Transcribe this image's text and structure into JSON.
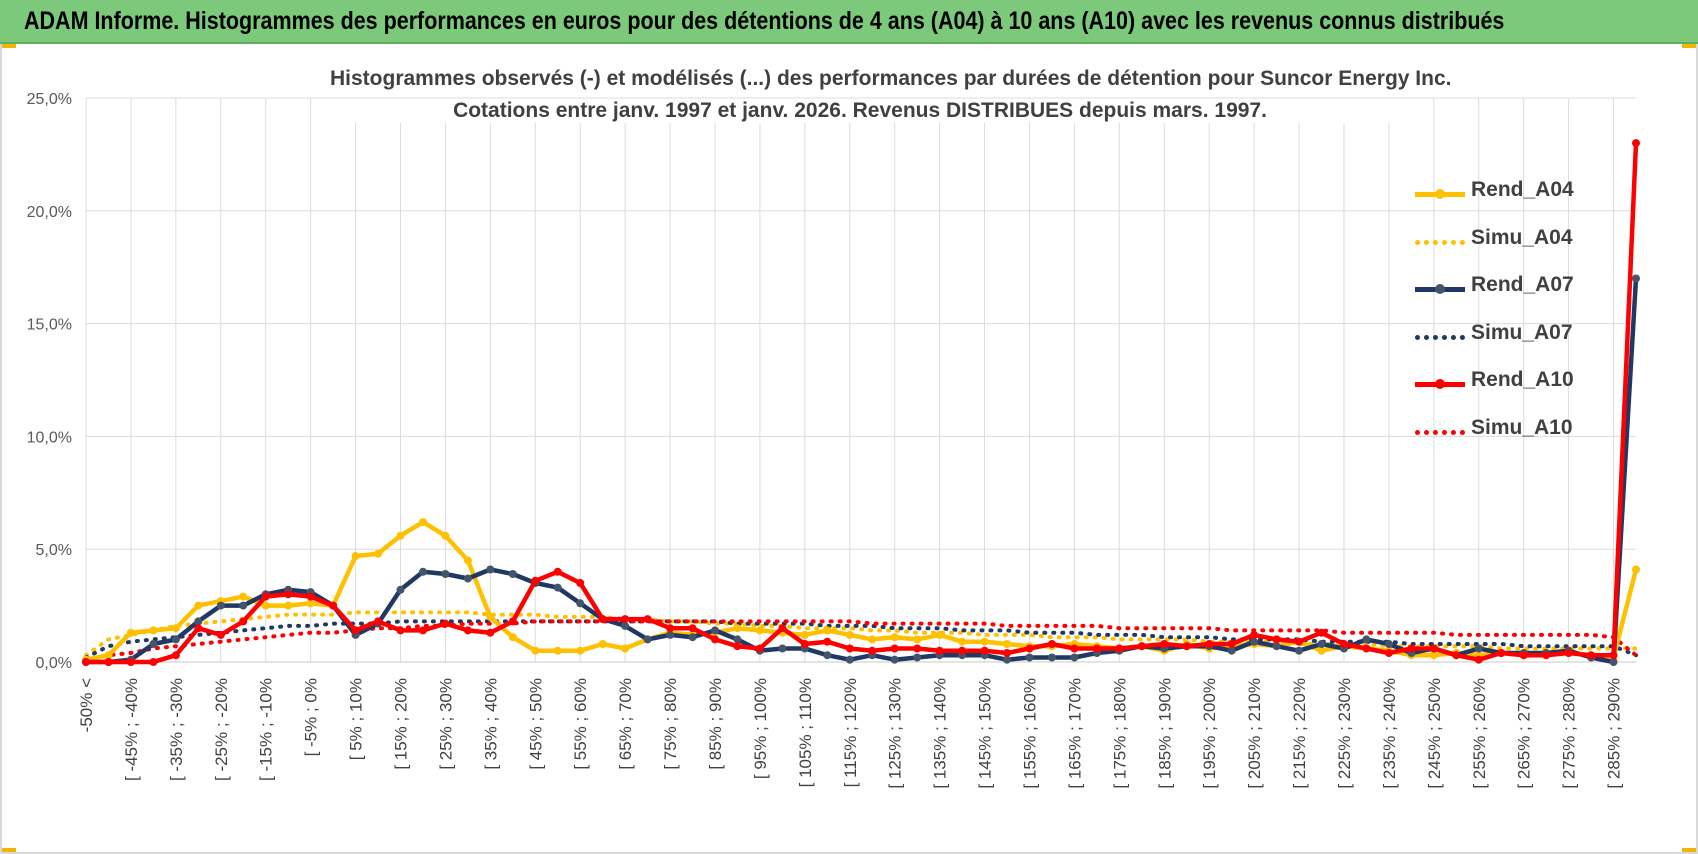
{
  "banner": {
    "title": "ADAM Informe. Histogrammes des performances en euros pour des détentions de 4 ans (A04) à 10 ans (A10) avec les revenus connus distribués"
  },
  "chart_data": {
    "type": "line",
    "title": "Histogrammes observés (-) et modélisés (...) des performances par durées de détention pour Suncor Energy Inc.",
    "subtitle": "Cotations entre janv. 1997 et janv. 2026. Revenus DISTRIBUES depuis mars. 1997.",
    "xlabel": "",
    "ylabel": "",
    "ylim": [
      0,
      25
    ],
    "yticks": [
      "0,0%",
      "5,0%",
      "10,0%",
      "15,0%",
      "20,0%",
      "25,0%"
    ],
    "grid": true,
    "legend_position": "top-right",
    "x_tick_labels": [
      "-50% <",
      "[ -45% ; -40%",
      "[ -35% ; -30%",
      "[ -25% ; -20%",
      "[ -15% ; -10%",
      "[ -5% ; 0%",
      "[ 5% ; 10%",
      "[ 15% ; 20%",
      "[ 25% ; 30%",
      "[ 35% ; 40%",
      "[ 45% ; 50%",
      "[ 55% ; 60%",
      "[ 65% ; 70%",
      "[ 75% ; 80%",
      "[ 85% ; 90%",
      "[ 95% ; 100%",
      "[ 105% ; 110%",
      "[ 115% ; 120%",
      "[ 125% ; 130%",
      "[ 135% ; 140%",
      "[ 145% ; 150%",
      "[ 155% ; 160%",
      "[ 165% ; 170%",
      "[ 175% ; 180%",
      "[ 185% ; 190%",
      "[ 195% ; 200%",
      "[ 205% ; 210%",
      "[ 215% ; 220%",
      "[ 225% ; 230%",
      "[ 235% ; 240%",
      "[ 245% ; 250%",
      "[ 255% ; 260%",
      "[ 265% ; 270%",
      "[ 275% ; 280%",
      "[ 285% ; 290%"
    ],
    "num_categories": 70,
    "series": [
      {
        "name": "Rend_A04",
        "style": "solid",
        "color": "#ffc000",
        "values": [
          0.1,
          0.3,
          1.3,
          1.4,
          1.5,
          2.5,
          2.7,
          2.9,
          2.5,
          2.5,
          2.6,
          2.5,
          4.7,
          4.8,
          5.6,
          6.2,
          5.6,
          4.5,
          2.0,
          1.1,
          0.5,
          0.5,
          0.5,
          0.8,
          0.6,
          1.0,
          1.3,
          1.2,
          1.3,
          1.5,
          1.4,
          1.3,
          1.2,
          1.4,
          1.2,
          1.0,
          1.1,
          1.0,
          1.2,
          0.9,
          0.9,
          0.8,
          0.7,
          0.7,
          0.8,
          0.7,
          0.6,
          0.7,
          0.5,
          0.8,
          0.6,
          0.7,
          0.8,
          0.7,
          0.9,
          0.5,
          0.7,
          0.6,
          0.5,
          0.3,
          0.3,
          0.4,
          0.3,
          0.4,
          0.3,
          0.4,
          0.4,
          0.3,
          0.2,
          4.1
        ]
      },
      {
        "name": "Simu_A04",
        "style": "dotted",
        "color": "#ffc000",
        "values": [
          0.3,
          1.0,
          1.2,
          1.4,
          1.6,
          1.7,
          1.8,
          1.9,
          2.0,
          2.1,
          2.1,
          2.1,
          2.2,
          2.2,
          2.2,
          2.2,
          2.2,
          2.2,
          2.1,
          2.1,
          2.1,
          2.0,
          2.0,
          2.0,
          1.9,
          1.9,
          1.8,
          1.8,
          1.7,
          1.7,
          1.6,
          1.6,
          1.5,
          1.5,
          1.5,
          1.4,
          1.4,
          1.3,
          1.3,
          1.3,
          1.2,
          1.2,
          1.2,
          1.1,
          1.1,
          1.1,
          1.0,
          1.0,
          1.0,
          1.0,
          0.9,
          0.9,
          0.9,
          0.9,
          0.8,
          0.8,
          0.8,
          0.8,
          0.7,
          0.7,
          0.7,
          0.7,
          0.7,
          0.6,
          0.6,
          0.6,
          0.6,
          0.6,
          0.6,
          0.6
        ]
      },
      {
        "name": "Rend_A07",
        "style": "solid",
        "color": "#1f3864",
        "values": [
          0.0,
          0.0,
          0.1,
          0.8,
          1.0,
          1.8,
          2.5,
          2.5,
          3.0,
          3.2,
          3.1,
          2.5,
          1.2,
          1.7,
          3.2,
          4.0,
          3.9,
          3.7,
          4.1,
          3.9,
          3.5,
          3.3,
          2.6,
          1.9,
          1.6,
          1.0,
          1.2,
          1.1,
          1.4,
          1.0,
          0.5,
          0.6,
          0.6,
          0.3,
          0.1,
          0.3,
          0.1,
          0.2,
          0.3,
          0.3,
          0.3,
          0.1,
          0.2,
          0.2,
          0.2,
          0.4,
          0.5,
          0.7,
          0.6,
          0.7,
          0.7,
          0.5,
          0.9,
          0.7,
          0.5,
          0.8,
          0.6,
          1.0,
          0.8,
          0.4,
          0.6,
          0.3,
          0.6,
          0.4,
          0.4,
          0.4,
          0.5,
          0.2,
          0.0,
          17.0
        ]
      },
      {
        "name": "Simu_A07",
        "style": "dotted",
        "color": "#1f3864",
        "values": [
          0.2,
          0.7,
          0.9,
          1.0,
          1.1,
          1.2,
          1.3,
          1.4,
          1.5,
          1.6,
          1.6,
          1.7,
          1.7,
          1.7,
          1.8,
          1.8,
          1.8,
          1.8,
          1.8,
          1.8,
          1.8,
          1.8,
          1.8,
          1.8,
          1.8,
          1.8,
          1.8,
          1.8,
          1.8,
          1.7,
          1.7,
          1.7,
          1.7,
          1.6,
          1.6,
          1.6,
          1.5,
          1.5,
          1.5,
          1.4,
          1.4,
          1.4,
          1.3,
          1.3,
          1.3,
          1.2,
          1.2,
          1.2,
          1.1,
          1.1,
          1.1,
          1.0,
          1.0,
          1.0,
          1.0,
          0.9,
          0.9,
          0.9,
          0.9,
          0.8,
          0.8,
          0.8,
          0.8,
          0.8,
          0.7,
          0.7,
          0.7,
          0.7,
          0.7,
          0.3
        ]
      },
      {
        "name": "Rend_A10",
        "style": "solid",
        "color": "#ff0000",
        "values": [
          0.0,
          0.0,
          0.0,
          0.0,
          0.3,
          1.5,
          1.2,
          1.8,
          2.9,
          3.0,
          2.9,
          2.5,
          1.4,
          1.8,
          1.4,
          1.4,
          1.7,
          1.4,
          1.3,
          1.8,
          3.6,
          4.0,
          3.5,
          1.9,
          1.9,
          1.9,
          1.5,
          1.5,
          1.0,
          0.7,
          0.6,
          1.5,
          0.8,
          0.9,
          0.6,
          0.5,
          0.6,
          0.6,
          0.5,
          0.5,
          0.5,
          0.4,
          0.6,
          0.8,
          0.6,
          0.6,
          0.6,
          0.7,
          0.8,
          0.7,
          0.8,
          0.8,
          1.2,
          1.0,
          0.9,
          1.3,
          0.8,
          0.6,
          0.4,
          0.6,
          0.6,
          0.3,
          0.1,
          0.4,
          0.3,
          0.3,
          0.4,
          0.3,
          0.3,
          23.0
        ]
      },
      {
        "name": "Simu_A10",
        "style": "dotted",
        "color": "#ff0000",
        "values": [
          0.1,
          0.3,
          0.4,
          0.6,
          0.7,
          0.8,
          0.9,
          1.0,
          1.1,
          1.2,
          1.3,
          1.3,
          1.4,
          1.5,
          1.5,
          1.6,
          1.6,
          1.7,
          1.7,
          1.7,
          1.8,
          1.8,
          1.8,
          1.8,
          1.8,
          1.8,
          1.8,
          1.8,
          1.8,
          1.8,
          1.8,
          1.8,
          1.8,
          1.8,
          1.8,
          1.7,
          1.7,
          1.7,
          1.7,
          1.7,
          1.7,
          1.6,
          1.6,
          1.6,
          1.6,
          1.6,
          1.5,
          1.5,
          1.5,
          1.5,
          1.5,
          1.4,
          1.4,
          1.4,
          1.4,
          1.4,
          1.3,
          1.3,
          1.3,
          1.3,
          1.3,
          1.2,
          1.2,
          1.2,
          1.2,
          1.2,
          1.2,
          1.2,
          1.1,
          0.3
        ]
      }
    ]
  }
}
